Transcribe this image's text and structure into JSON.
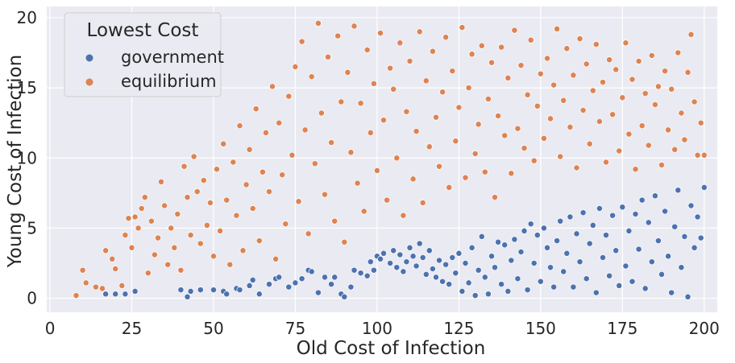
{
  "chart_data": {
    "type": "scatter",
    "xlabel": "Old Cost of Infection",
    "ylabel": "Young Cost of Infection",
    "xlim": [
      -1,
      204
    ],
    "ylim": [
      -1,
      20.8
    ],
    "xticks": [
      0,
      25,
      50,
      75,
      100,
      125,
      150,
      175,
      200
    ],
    "yticks": [
      0,
      5,
      10,
      15,
      20
    ],
    "grid": true,
    "background": "#eaeaf2",
    "legend": {
      "title": "Lowest Cost",
      "placement": "top-left",
      "entries": [
        "government",
        "equilibrium"
      ]
    },
    "series": [
      {
        "name": "government",
        "color": "#4c72b0",
        "points": [
          [
            17,
            0.3
          ],
          [
            20,
            0.3
          ],
          [
            23,
            0.3
          ],
          [
            26,
            0.5
          ],
          [
            40,
            0.6
          ],
          [
            42,
            0.1
          ],
          [
            43,
            0.5
          ],
          [
            46,
            0.6
          ],
          [
            50,
            0.6
          ],
          [
            53,
            0.5
          ],
          [
            54,
            0.3
          ],
          [
            57,
            0.7
          ],
          [
            58,
            0.6
          ],
          [
            61,
            0.9
          ],
          [
            62,
            1.3
          ],
          [
            64,
            0.3
          ],
          [
            67,
            1.0
          ],
          [
            69,
            1.4
          ],
          [
            70,
            1.5
          ],
          [
            73,
            0.8
          ],
          [
            75,
            1.1
          ],
          [
            77,
            1.4
          ],
          [
            79,
            2.0
          ],
          [
            80,
            1.9
          ],
          [
            82,
            0.4
          ],
          [
            84,
            1.5
          ],
          [
            86,
            1.0
          ],
          [
            87,
            1.5
          ],
          [
            89,
            0.3
          ],
          [
            90,
            0.1
          ],
          [
            92,
            0.8
          ],
          [
            93,
            2.0
          ],
          [
            95,
            1.8
          ],
          [
            97,
            1.6
          ],
          [
            98,
            2.6
          ],
          [
            99,
            2.0
          ],
          [
            100,
            3.0
          ],
          [
            101,
            2.8
          ],
          [
            102,
            3.2
          ],
          [
            104,
            2.5
          ],
          [
            105,
            3.4
          ],
          [
            106,
            2.2
          ],
          [
            107,
            3.1
          ],
          [
            108,
            1.9
          ],
          [
            109,
            2.6
          ],
          [
            110,
            3.6
          ],
          [
            111,
            3.0
          ],
          [
            112,
            2.3
          ],
          [
            113,
            3.9
          ],
          [
            114,
            2.9
          ],
          [
            115,
            1.7
          ],
          [
            116,
            3.4
          ],
          [
            117,
            2.1
          ],
          [
            118,
            1.5
          ],
          [
            119,
            2.7
          ],
          [
            120,
            1.2
          ],
          [
            121,
            2.4
          ],
          [
            122,
            1.0
          ],
          [
            123,
            2.9
          ],
          [
            124,
            1.8
          ],
          [
            125,
            3.2
          ],
          [
            126,
            0.5
          ],
          [
            127,
            2.5
          ],
          [
            128,
            1.1
          ],
          [
            129,
            3.6
          ],
          [
            130,
            0.2
          ],
          [
            131,
            2.0
          ],
          [
            132,
            4.4
          ],
          [
            133,
            1.5
          ],
          [
            134,
            0.3
          ],
          [
            135,
            3.0
          ],
          [
            136,
            2.2
          ],
          [
            137,
            4.0
          ],
          [
            138,
            1.0
          ],
          [
            139,
            3.8
          ],
          [
            140,
            0.5
          ],
          [
            141,
            2.7
          ],
          [
            142,
            4.2
          ],
          [
            143,
            1.4
          ],
          [
            144,
            3.3
          ],
          [
            145,
            4.8
          ],
          [
            146,
            0.6
          ],
          [
            147,
            5.3
          ],
          [
            148,
            2.5
          ],
          [
            149,
            4.5
          ],
          [
            150,
            1.2
          ],
          [
            151,
            5.0
          ],
          [
            152,
            3.6
          ],
          [
            153,
            2.2
          ],
          [
            154,
            0.8
          ],
          [
            155,
            4.1
          ],
          [
            156,
            5.5
          ],
          [
            157,
            1.9
          ],
          [
            158,
            3.2
          ],
          [
            159,
            5.8
          ],
          [
            160,
            0.8
          ],
          [
            161,
            4.6
          ],
          [
            162,
            2.6
          ],
          [
            163,
            6.1
          ],
          [
            164,
            1.4
          ],
          [
            165,
            3.9
          ],
          [
            166,
            5.2
          ],
          [
            167,
            0.4
          ],
          [
            168,
            6.4
          ],
          [
            169,
            2.9
          ],
          [
            170,
            4.5
          ],
          [
            171,
            1.6
          ],
          [
            172,
            5.9
          ],
          [
            173,
            3.4
          ],
          [
            174,
            0.9
          ],
          [
            175,
            6.5
          ],
          [
            176,
            2.3
          ],
          [
            177,
            4.8
          ],
          [
            178,
            1.2
          ],
          [
            179,
            6.0
          ],
          [
            180,
            3.5
          ],
          [
            181,
            7.0
          ],
          [
            182,
            0.7
          ],
          [
            183,
            5.4
          ],
          [
            184,
            2.6
          ],
          [
            185,
            7.3
          ],
          [
            186,
            4.1
          ],
          [
            187,
            1.7
          ],
          [
            188,
            6.2
          ],
          [
            189,
            3.0
          ],
          [
            190,
            0.4
          ],
          [
            191,
            5.1
          ],
          [
            192,
            7.7
          ],
          [
            193,
            2.2
          ],
          [
            194,
            4.4
          ],
          [
            195,
            0.1
          ],
          [
            196,
            6.6
          ],
          [
            197,
            3.6
          ],
          [
            198,
            5.8
          ],
          [
            199,
            4.3
          ],
          [
            200,
            7.9
          ]
        ]
      },
      {
        "name": "equilibrium",
        "color": "#dd8452",
        "points": [
          [
            8,
            0.2
          ],
          [
            10,
            2.0
          ],
          [
            11,
            1.1
          ],
          [
            14,
            0.8
          ],
          [
            16,
            0.7
          ],
          [
            17,
            3.4
          ],
          [
            19,
            2.8
          ],
          [
            20,
            2.1
          ],
          [
            22,
            0.9
          ],
          [
            23,
            4.5
          ],
          [
            24,
            5.7
          ],
          [
            25,
            3.6
          ],
          [
            26,
            5.8
          ],
          [
            27,
            5.0
          ],
          [
            28,
            6.4
          ],
          [
            29,
            7.2
          ],
          [
            30,
            1.8
          ],
          [
            31,
            5.5
          ],
          [
            32,
            3.1
          ],
          [
            33,
            4.3
          ],
          [
            34,
            8.3
          ],
          [
            35,
            6.6
          ],
          [
            36,
            2.4
          ],
          [
            37,
            5.0
          ],
          [
            38,
            3.6
          ],
          [
            39,
            6.0
          ],
          [
            40,
            2.0
          ],
          [
            41,
            9.4
          ],
          [
            42,
            7.2
          ],
          [
            43,
            4.5
          ],
          [
            44,
            10.1
          ],
          [
            45,
            7.6
          ],
          [
            46,
            3.9
          ],
          [
            47,
            8.4
          ],
          [
            48,
            5.2
          ],
          [
            49,
            6.8
          ],
          [
            50,
            3.0
          ],
          [
            51,
            9.2
          ],
          [
            52,
            4.8
          ],
          [
            53,
            11.0
          ],
          [
            54,
            7.0
          ],
          [
            55,
            2.4
          ],
          [
            56,
            9.7
          ],
          [
            57,
            5.9
          ],
          [
            58,
            12.3
          ],
          [
            59,
            3.4
          ],
          [
            60,
            8.1
          ],
          [
            61,
            10.6
          ],
          [
            62,
            6.4
          ],
          [
            63,
            13.5
          ],
          [
            64,
            4.1
          ],
          [
            65,
            9.0
          ],
          [
            66,
            11.8
          ],
          [
            67,
            7.6
          ],
          [
            68,
            15.1
          ],
          [
            69,
            2.8
          ],
          [
            70,
            12.5
          ],
          [
            71,
            8.8
          ],
          [
            72,
            5.3
          ],
          [
            73,
            14.4
          ],
          [
            74,
            10.2
          ],
          [
            75,
            16.5
          ],
          [
            76,
            6.9
          ],
          [
            77,
            18.3
          ],
          [
            78,
            12.0
          ],
          [
            79,
            4.6
          ],
          [
            80,
            15.8
          ],
          [
            81,
            9.6
          ],
          [
            82,
            19.6
          ],
          [
            83,
            13.2
          ],
          [
            84,
            7.4
          ],
          [
            85,
            17.2
          ],
          [
            86,
            11.1
          ],
          [
            87,
            5.5
          ],
          [
            88,
            18.7
          ],
          [
            89,
            14.0
          ],
          [
            90,
            4.0
          ],
          [
            91,
            16.1
          ],
          [
            92,
            10.4
          ],
          [
            93,
            19.4
          ],
          [
            94,
            8.2
          ],
          [
            95,
            13.9
          ],
          [
            96,
            6.2
          ],
          [
            97,
            17.7
          ],
          [
            98,
            11.8
          ],
          [
            99,
            15.3
          ],
          [
            100,
            9.1
          ],
          [
            101,
            18.9
          ],
          [
            102,
            12.7
          ],
          [
            103,
            7.0
          ],
          [
            104,
            16.4
          ],
          [
            105,
            14.9
          ],
          [
            106,
            10.0
          ],
          [
            107,
            18.2
          ],
          [
            108,
            5.9
          ],
          [
            109,
            13.3
          ],
          [
            110,
            16.9
          ],
          [
            111,
            8.5
          ],
          [
            112,
            11.9
          ],
          [
            113,
            19.0
          ],
          [
            114,
            6.8
          ],
          [
            115,
            15.5
          ],
          [
            116,
            10.8
          ],
          [
            117,
            17.6
          ],
          [
            118,
            12.9
          ],
          [
            119,
            9.4
          ],
          [
            120,
            14.7
          ],
          [
            121,
            18.6
          ],
          [
            122,
            7.9
          ],
          [
            123,
            16.2
          ],
          [
            124,
            11.2
          ],
          [
            125,
            13.6
          ],
          [
            126,
            19.3
          ],
          [
            127,
            8.6
          ],
          [
            128,
            15.0
          ],
          [
            129,
            17.4
          ],
          [
            130,
            10.3
          ],
          [
            131,
            12.4
          ],
          [
            132,
            18.0
          ],
          [
            133,
            9.0
          ],
          [
            134,
            14.2
          ],
          [
            135,
            16.8
          ],
          [
            136,
            7.2
          ],
          [
            137,
            13.0
          ],
          [
            138,
            17.9
          ],
          [
            139,
            11.6
          ],
          [
            140,
            15.7
          ],
          [
            141,
            8.9
          ],
          [
            142,
            19.1
          ],
          [
            143,
            12.1
          ],
          [
            144,
            16.6
          ],
          [
            145,
            10.7
          ],
          [
            146,
            14.5
          ],
          [
            147,
            18.4
          ],
          [
            148,
            9.8
          ],
          [
            149,
            13.7
          ],
          [
            150,
            16.0
          ],
          [
            151,
            11.4
          ],
          [
            152,
            17.1
          ],
          [
            153,
            12.8
          ],
          [
            154,
            15.2
          ],
          [
            155,
            19.2
          ],
          [
            156,
            10.1
          ],
          [
            157,
            14.1
          ],
          [
            158,
            17.8
          ],
          [
            159,
            12.2
          ],
          [
            160,
            15.9
          ],
          [
            161,
            9.3
          ],
          [
            162,
            18.5
          ],
          [
            163,
            13.4
          ],
          [
            164,
            16.7
          ],
          [
            165,
            11.0
          ],
          [
            166,
            14.8
          ],
          [
            167,
            18.1
          ],
          [
            168,
            12.6
          ],
          [
            169,
            15.4
          ],
          [
            170,
            9.7
          ],
          [
            171,
            17.0
          ],
          [
            172,
            13.1
          ],
          [
            173,
            16.3
          ],
          [
            174,
            10.5
          ],
          [
            175,
            14.3
          ],
          [
            176,
            18.2
          ],
          [
            177,
            11.7
          ],
          [
            178,
            15.6
          ],
          [
            179,
            9.2
          ],
          [
            180,
            16.9
          ],
          [
            181,
            12.3
          ],
          [
            182,
            14.6
          ],
          [
            183,
            10.9
          ],
          [
            184,
            17.3
          ],
          [
            185,
            13.8
          ],
          [
            186,
            15.1
          ],
          [
            187,
            9.5
          ],
          [
            188,
            16.2
          ],
          [
            189,
            12.0
          ],
          [
            190,
            14.9
          ],
          [
            191,
            10.6
          ],
          [
            192,
            17.5
          ],
          [
            193,
            13.2
          ],
          [
            194,
            11.3
          ],
          [
            195,
            16.1
          ],
          [
            196,
            18.8
          ],
          [
            197,
            14.0
          ],
          [
            198,
            10.2
          ],
          [
            199,
            12.5
          ],
          [
            200,
            10.2
          ]
        ]
      }
    ]
  }
}
